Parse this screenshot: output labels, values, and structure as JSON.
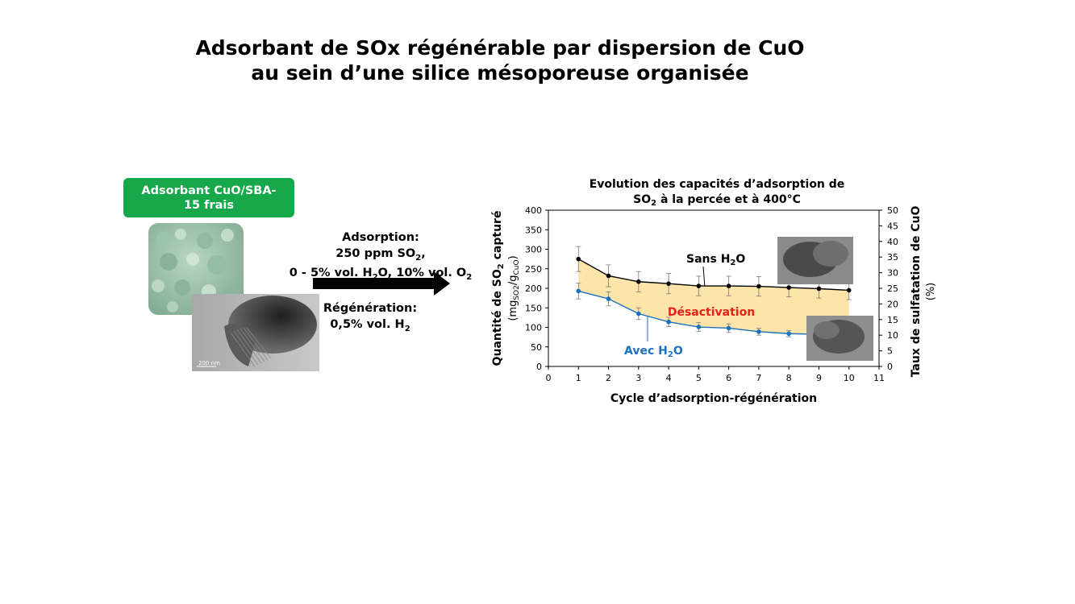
{
  "title": {
    "line1": "Adsorbant de SOx régénérable par dispersion de CuO",
    "line2": "au sein d’une silice mésoporeuse organisée"
  },
  "left_panel": {
    "badge_line1": "Adsorbant CuO/SBA-",
    "badge_line2": "15 frais",
    "scale_bar_label": "200 nm"
  },
  "process": {
    "adsorption_label": "Adsorption:",
    "adsorption_conc_prefix": "250 ppm SO",
    "adsorption_conc_sub": "2",
    "adsorption_conc_suffix": ",",
    "adsorption_gas_a": "0 - 5% vol. H",
    "adsorption_gas_sub1": "2",
    "adsorption_gas_b": "O, 10% vol. O",
    "adsorption_gas_sub2": "2",
    "regeneration_label": "Régénération:",
    "regeneration_gas_prefix": "0,5% vol. H",
    "regeneration_gas_sub": "2"
  },
  "chart_data": {
    "type": "line",
    "title_line1": "Evolution des capacités d’adsorption de",
    "title_line2_prefix": "SO",
    "title_line2_sub": "2",
    "title_line2_suffix": " à la percée et à 400°C",
    "xlabel": "Cycle d’adsorption-régénération",
    "ylabel_line1_prefix": "Quantité de SO",
    "ylabel_line1_sub": "2",
    "ylabel_line1_suffix": " capturé",
    "ylabel_line2_open": "(mg",
    "ylabel_line2_sub1": "SO2",
    "ylabel_line2_slash": "/g",
    "ylabel_line2_sub2": "CuO",
    "ylabel_line2_close": ")",
    "y2label_line1": "Taux de sulfatation de CuO",
    "y2label_line2": "(%)",
    "xlim": [
      0,
      11
    ],
    "ylim": [
      0,
      400
    ],
    "y2lim": [
      0,
      50
    ],
    "xticks": [
      "0",
      "1",
      "2",
      "3",
      "4",
      "5",
      "6",
      "7",
      "8",
      "9",
      "10",
      "11"
    ],
    "yticks": [
      "0",
      "50",
      "100",
      "150",
      "200",
      "250",
      "300",
      "350",
      "400"
    ],
    "y2ticks": [
      "0",
      "5",
      "10",
      "15",
      "20",
      "25",
      "30",
      "35",
      "40",
      "45",
      "50"
    ],
    "series": [
      {
        "name": "Sans H2O",
        "label_prefix": "Sans H",
        "label_sub": "2",
        "label_suffix": "O",
        "color": "#000000",
        "x": [
          1,
          2,
          3,
          4,
          5,
          6,
          7,
          8,
          9,
          10
        ],
        "values": [
          275,
          232,
          217,
          212,
          206,
          206,
          205,
          202,
          199,
          195
        ],
        "errors": [
          32,
          28,
          26,
          26,
          25,
          25,
          25,
          24,
          24,
          24
        ]
      },
      {
        "name": "Avec H2O",
        "label_prefix": "Avec H",
        "label_sub": "2",
        "label_suffix": "O",
        "color": "#1a73c0",
        "x": [
          1,
          2,
          3,
          4,
          5,
          6,
          7,
          8,
          9
        ],
        "values": [
          193,
          173,
          135,
          114,
          101,
          98,
          89,
          84,
          82
        ],
        "errors": [
          20,
          18,
          15,
          12,
          11,
          11,
          9,
          8,
          8
        ]
      }
    ],
    "fill_color": "#fde4a8",
    "annotation": {
      "text": "Désactivation",
      "color": "#e8201c"
    }
  }
}
